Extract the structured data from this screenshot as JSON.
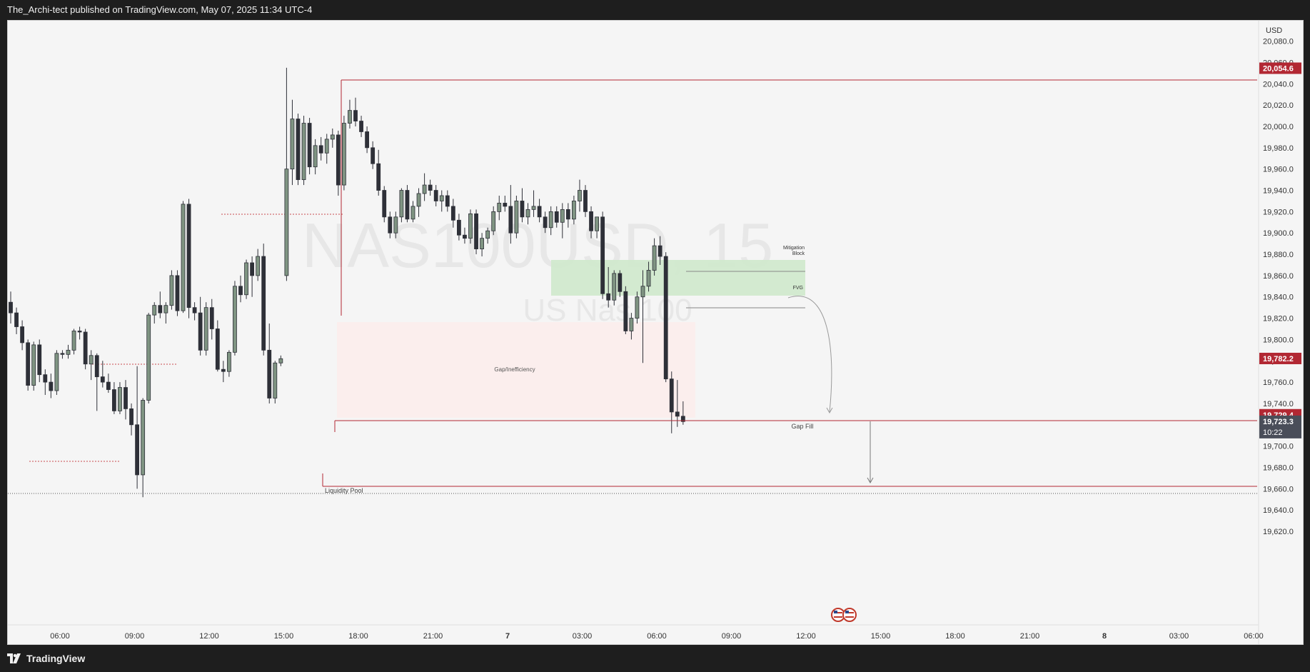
{
  "header": {
    "publish_line": "The_Archi-tect published on TradingView.com, May 07, 2025 11:34 UTC-4"
  },
  "footer": {
    "logo_text": "TradingView"
  },
  "watermark": {
    "symbol": "NAS100USD, 15",
    "name": "US Nas 100"
  },
  "price_axis": {
    "currency": "USD",
    "ticks": [
      "20,080.0",
      "20,060.0",
      "20,040.0",
      "20,020.0",
      "20,000.0",
      "19,980.0",
      "19,960.0",
      "19,940.0",
      "19,920.0",
      "19,900.0",
      "19,880.0",
      "19,860.0",
      "19,840.0",
      "19,820.0",
      "19,800.0",
      "19,780.0",
      "19,760.0",
      "19,740.0",
      "19,720.0",
      "19,700.0",
      "19,680.0",
      "19,660.0",
      "19,640.0",
      "19,620.0"
    ],
    "price_labels": [
      {
        "text": "20,054.6",
        "value": 20054.6,
        "color": "#b22833"
      },
      {
        "text": "19,782.2",
        "value": 19782.2,
        "color": "#b22833"
      },
      {
        "text": "19,729.4",
        "value": 19729.4,
        "color": "#b22833"
      }
    ],
    "last_price": {
      "text": "19,723.3",
      "value": 19723.3,
      "countdown": "10:22",
      "color": "#4a4e59"
    }
  },
  "time_axis": {
    "labels": [
      {
        "text": "06:00",
        "bold": false
      },
      {
        "text": "09:00",
        "bold": false
      },
      {
        "text": "12:00",
        "bold": false
      },
      {
        "text": "15:00",
        "bold": false
      },
      {
        "text": "18:00",
        "bold": false
      },
      {
        "text": "21:00",
        "bold": false
      },
      {
        "text": "7",
        "bold": true
      },
      {
        "text": "03:00",
        "bold": false
      },
      {
        "text": "06:00",
        "bold": false
      },
      {
        "text": "09:00",
        "bold": false
      },
      {
        "text": "12:00",
        "bold": false
      },
      {
        "text": "15:00",
        "bold": false
      },
      {
        "text": "18:00",
        "bold": false
      },
      {
        "text": "21:00",
        "bold": false
      },
      {
        "text": "8",
        "bold": true
      },
      {
        "text": "03:00",
        "bold": false
      },
      {
        "text": "06:00",
        "bold": false
      }
    ]
  },
  "annotations": {
    "gap_label": "Gap/Inefficiency",
    "mitigation_label_1": "Mitigation",
    "mitigation_label_2": "Block",
    "fvg_label": "FVG",
    "gap_fill_label": "Gap Fill",
    "liquidity_label": "Liquidity Pool"
  },
  "colors": {
    "bull": "#7f9482",
    "bear": "#2e3038",
    "level_line": "#b22833",
    "gap_zone": "#fbeceb",
    "fvg_zone": "#cfe9cc"
  },
  "chart_data": {
    "type": "candlestick",
    "symbol": "NAS100USD",
    "interval": "15",
    "ylim": [
      19610,
      20090
    ],
    "levels": [
      20054.6,
      19782.2,
      19729.4
    ],
    "candles": [
      {
        "o": 19835,
        "h": 19845,
        "l": 19815,
        "c": 19825
      },
      {
        "o": 19825,
        "h": 19830,
        "l": 19805,
        "c": 19812
      },
      {
        "o": 19812,
        "h": 19818,
        "l": 19790,
        "c": 19797
      },
      {
        "o": 19797,
        "h": 19800,
        "l": 19752,
        "c": 19757
      },
      {
        "o": 19757,
        "h": 19798,
        "l": 19752,
        "c": 19795
      },
      {
        "o": 19795,
        "h": 19800,
        "l": 19760,
        "c": 19767
      },
      {
        "o": 19767,
        "h": 19772,
        "l": 19748,
        "c": 19760
      },
      {
        "o": 19760,
        "h": 19768,
        "l": 19745,
        "c": 19752
      },
      {
        "o": 19752,
        "h": 19790,
        "l": 19748,
        "c": 19787
      },
      {
        "o": 19787,
        "h": 19790,
        "l": 19782,
        "c": 19786
      },
      {
        "o": 19786,
        "h": 19795,
        "l": 19782,
        "c": 19790
      },
      {
        "o": 19790,
        "h": 19810,
        "l": 19786,
        "c": 19808
      },
      {
        "o": 19808,
        "h": 19812,
        "l": 19800,
        "c": 19807
      },
      {
        "o": 19807,
        "h": 19810,
        "l": 19772,
        "c": 19777
      },
      {
        "o": 19777,
        "h": 19790,
        "l": 19762,
        "c": 19785
      },
      {
        "o": 19785,
        "h": 19787,
        "l": 19733,
        "c": 19765
      },
      {
        "o": 19765,
        "h": 19780,
        "l": 19755,
        "c": 19760
      },
      {
        "o": 19760,
        "h": 19768,
        "l": 19750,
        "c": 19753
      },
      {
        "o": 19753,
        "h": 19760,
        "l": 19730,
        "c": 19733
      },
      {
        "o": 19733,
        "h": 19760,
        "l": 19730,
        "c": 19755
      },
      {
        "o": 19755,
        "h": 19762,
        "l": 19725,
        "c": 19735
      },
      {
        "o": 19735,
        "h": 19740,
        "l": 19710,
        "c": 19720
      },
      {
        "o": 19720,
        "h": 19775,
        "l": 19660,
        "c": 19673
      },
      {
        "o": 19673,
        "h": 19745,
        "l": 19652,
        "c": 19743
      },
      {
        "o": 19743,
        "h": 19825,
        "l": 19740,
        "c": 19823
      },
      {
        "o": 19823,
        "h": 19835,
        "l": 19815,
        "c": 19832
      },
      {
        "o": 19832,
        "h": 19845,
        "l": 19820,
        "c": 19825
      },
      {
        "o": 19825,
        "h": 19835,
        "l": 19815,
        "c": 19832
      },
      {
        "o": 19832,
        "h": 19865,
        "l": 19828,
        "c": 19860
      },
      {
        "o": 19860,
        "h": 19865,
        "l": 19822,
        "c": 19827
      },
      {
        "o": 19827,
        "h": 19930,
        "l": 19825,
        "c": 19927
      },
      {
        "o": 19927,
        "h": 19932,
        "l": 19820,
        "c": 19830
      },
      {
        "o": 19830,
        "h": 19835,
        "l": 19818,
        "c": 19825
      },
      {
        "o": 19825,
        "h": 19840,
        "l": 19785,
        "c": 19790
      },
      {
        "o": 19790,
        "h": 19835,
        "l": 19785,
        "c": 19830
      },
      {
        "o": 19830,
        "h": 19838,
        "l": 19800,
        "c": 19810
      },
      {
        "o": 19810,
        "h": 19818,
        "l": 19770,
        "c": 19772
      },
      {
        "o": 19772,
        "h": 19780,
        "l": 19760,
        "c": 19770
      },
      {
        "o": 19770,
        "h": 19790,
        "l": 19765,
        "c": 19788
      },
      {
        "o": 19788,
        "h": 19855,
        "l": 19785,
        "c": 19850
      },
      {
        "o": 19850,
        "h": 19860,
        "l": 19835,
        "c": 19842
      },
      {
        "o": 19842,
        "h": 19875,
        "l": 19838,
        "c": 19872
      },
      {
        "o": 19872,
        "h": 19878,
        "l": 19840,
        "c": 19860
      },
      {
        "o": 19860,
        "h": 19885,
        "l": 19855,
        "c": 19878
      },
      {
        "o": 19878,
        "h": 19890,
        "l": 19785,
        "c": 19790
      },
      {
        "o": 19790,
        "h": 19815,
        "l": 19740,
        "c": 19745
      },
      {
        "o": 19745,
        "h": 19780,
        "l": 19740,
        "c": 19778
      },
      {
        "o": 19778,
        "h": 19785,
        "l": 19775,
        "c": 19782
      },
      {
        "o": 19860,
        "h": 20055,
        "l": 19855,
        "c": 19960
      },
      {
        "o": 19960,
        "h": 20025,
        "l": 19945,
        "c": 20007
      },
      {
        "o": 20007,
        "h": 20012,
        "l": 19945,
        "c": 19950
      },
      {
        "o": 19950,
        "h": 20010,
        "l": 19945,
        "c": 20003
      },
      {
        "o": 20003,
        "h": 20008,
        "l": 19955,
        "c": 19962
      },
      {
        "o": 19962,
        "h": 19988,
        "l": 19955,
        "c": 19982
      },
      {
        "o": 19982,
        "h": 19990,
        "l": 19968,
        "c": 19975
      },
      {
        "o": 19975,
        "h": 19993,
        "l": 19965,
        "c": 19988
      },
      {
        "o": 19988,
        "h": 19998,
        "l": 19980,
        "c": 19992
      },
      {
        "o": 19992,
        "h": 19996,
        "l": 19935,
        "c": 19945
      },
      {
        "o": 19945,
        "h": 20010,
        "l": 19940,
        "c": 20003
      },
      {
        "o": 20003,
        "h": 20025,
        "l": 19998,
        "c": 20015
      },
      {
        "o": 20015,
        "h": 20027,
        "l": 20000,
        "c": 20005
      },
      {
        "o": 20005,
        "h": 20010,
        "l": 19990,
        "c": 19995
      },
      {
        "o": 19995,
        "h": 20000,
        "l": 19975,
        "c": 19980
      },
      {
        "o": 19980,
        "h": 19986,
        "l": 19960,
        "c": 19965
      },
      {
        "o": 19965,
        "h": 19978,
        "l": 19935,
        "c": 19940
      },
      {
        "o": 19940,
        "h": 19944,
        "l": 19910,
        "c": 19915
      },
      {
        "o": 19915,
        "h": 19920,
        "l": 19895,
        "c": 19900
      },
      {
        "o": 19900,
        "h": 19920,
        "l": 19895,
        "c": 19915
      },
      {
        "o": 19915,
        "h": 19942,
        "l": 19910,
        "c": 19940
      },
      {
        "o": 19940,
        "h": 19945,
        "l": 19910,
        "c": 19913
      },
      {
        "o": 19913,
        "h": 19930,
        "l": 19910,
        "c": 19925
      },
      {
        "o": 19925,
        "h": 19942,
        "l": 19915,
        "c": 19937
      },
      {
        "o": 19937,
        "h": 19956,
        "l": 19930,
        "c": 19945
      },
      {
        "o": 19945,
        "h": 19950,
        "l": 19935,
        "c": 19940
      },
      {
        "o": 19940,
        "h": 19945,
        "l": 19925,
        "c": 19930
      },
      {
        "o": 19930,
        "h": 19940,
        "l": 19920,
        "c": 19935
      },
      {
        "o": 19935,
        "h": 19940,
        "l": 19920,
        "c": 19925
      },
      {
        "o": 19925,
        "h": 19932,
        "l": 19905,
        "c": 19912
      },
      {
        "o": 19912,
        "h": 19918,
        "l": 19893,
        "c": 19898
      },
      {
        "o": 19898,
        "h": 19905,
        "l": 19890,
        "c": 19895
      },
      {
        "o": 19895,
        "h": 19922,
        "l": 19890,
        "c": 19918
      },
      {
        "o": 19918,
        "h": 19922,
        "l": 19880,
        "c": 19885
      },
      {
        "o": 19885,
        "h": 19900,
        "l": 19878,
        "c": 19895
      },
      {
        "o": 19895,
        "h": 19905,
        "l": 19890,
        "c": 19902
      },
      {
        "o": 19902,
        "h": 19925,
        "l": 19898,
        "c": 19920
      },
      {
        "o": 19920,
        "h": 19935,
        "l": 19912,
        "c": 19928
      },
      {
        "o": 19928,
        "h": 19935,
        "l": 19920,
        "c": 19925
      },
      {
        "o": 19925,
        "h": 19945,
        "l": 19890,
        "c": 19900
      },
      {
        "o": 19900,
        "h": 19935,
        "l": 19895,
        "c": 19930
      },
      {
        "o": 19930,
        "h": 19942,
        "l": 19910,
        "c": 19915
      },
      {
        "o": 19915,
        "h": 19928,
        "l": 19908,
        "c": 19922
      },
      {
        "o": 19922,
        "h": 19940,
        "l": 19915,
        "c": 19925
      },
      {
        "o": 19925,
        "h": 19932,
        "l": 19910,
        "c": 19915
      },
      {
        "o": 19915,
        "h": 19920,
        "l": 19900,
        "c": 19905
      },
      {
        "o": 19905,
        "h": 19925,
        "l": 19898,
        "c": 19920
      },
      {
        "o": 19920,
        "h": 19925,
        "l": 19905,
        "c": 19910
      },
      {
        "o": 19910,
        "h": 19928,
        "l": 19895,
        "c": 19922
      },
      {
        "o": 19922,
        "h": 19928,
        "l": 19905,
        "c": 19913
      },
      {
        "o": 19913,
        "h": 19935,
        "l": 19908,
        "c": 19930
      },
      {
        "o": 19930,
        "h": 19950,
        "l": 19920,
        "c": 19940
      },
      {
        "o": 19940,
        "h": 19945,
        "l": 19915,
        "c": 19920
      },
      {
        "o": 19920,
        "h": 19925,
        "l": 19895,
        "c": 19902
      },
      {
        "o": 19902,
        "h": 19915,
        "l": 19895,
        "c": 19915
      },
      {
        "o": 19915,
        "h": 19920,
        "l": 19838,
        "c": 19843
      },
      {
        "o": 19843,
        "h": 19868,
        "l": 19830,
        "c": 19837
      },
      {
        "o": 19837,
        "h": 19865,
        "l": 19832,
        "c": 19862
      },
      {
        "o": 19862,
        "h": 19865,
        "l": 19840,
        "c": 19845
      },
      {
        "o": 19845,
        "h": 19850,
        "l": 19805,
        "c": 19808
      },
      {
        "o": 19808,
        "h": 19825,
        "l": 19800,
        "c": 19820
      },
      {
        "o": 19820,
        "h": 19845,
        "l": 19815,
        "c": 19840
      },
      {
        "o": 19840,
        "h": 19865,
        "l": 19778,
        "c": 19850
      },
      {
        "o": 19850,
        "h": 19873,
        "l": 19845,
        "c": 19865
      },
      {
        "o": 19865,
        "h": 19895,
        "l": 19860,
        "c": 19888
      },
      {
        "o": 19888,
        "h": 19897,
        "l": 19870,
        "c": 19878
      },
      {
        "o": 19878,
        "h": 19882,
        "l": 19760,
        "c": 19763
      },
      {
        "o": 19763,
        "h": 19770,
        "l": 19712,
        "c": 19732
      },
      {
        "o": 19732,
        "h": 19762,
        "l": 19718,
        "c": 19728
      },
      {
        "o": 19728,
        "h": 19742,
        "l": 19720,
        "c": 19723
      }
    ]
  }
}
